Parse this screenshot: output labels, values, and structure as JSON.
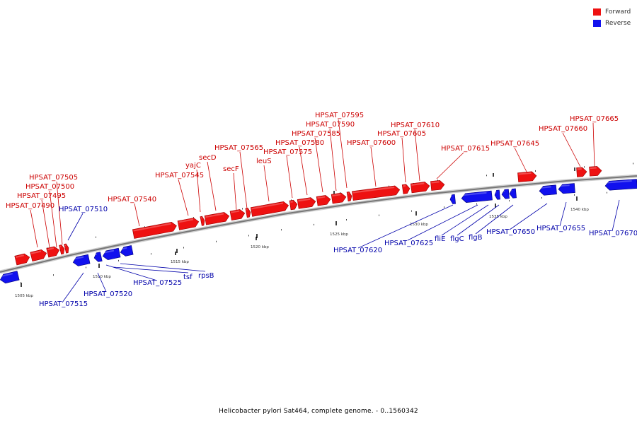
{
  "legend": {
    "forward_label": "Forward",
    "reverse_label": "Reverse",
    "forward_color": "#ee1111",
    "reverse_color": "#1111ee"
  },
  "caption": "Helicobacter pylori Sat464, complete genome. - 0..1560342",
  "colors": {
    "forward": "#ee1111",
    "reverse": "#1111ee",
    "forward_text": "#cc0000",
    "reverse_text": "#0000aa",
    "backbone": "#777777"
  },
  "kbp_ticks": [
    {
      "label": "1505 kbp"
    },
    {
      "label": "1510 kbp"
    },
    {
      "label": "1515 kbp"
    },
    {
      "label": "1520 kbp"
    },
    {
      "label": "1525 kbp"
    },
    {
      "label": "1530 kbp"
    },
    {
      "label": "1535 kbp"
    },
    {
      "label": "1540 kbp"
    }
  ],
  "forward_genes": [
    {
      "label": "HPSAT_07490"
    },
    {
      "label": "HPSAT_07495"
    },
    {
      "label": "HPSAT_07500"
    },
    {
      "label": "HPSAT_07505"
    },
    {
      "label": "HPSAT_07540"
    },
    {
      "label": "HPSAT_07545"
    },
    {
      "label": "yajC"
    },
    {
      "label": "secD"
    },
    {
      "label": "secF"
    },
    {
      "label": "HPSAT_07565"
    },
    {
      "label": "leuS"
    },
    {
      "label": "HPSAT_07575"
    },
    {
      "label": "HPSAT_07580"
    },
    {
      "label": "HPSAT_07585"
    },
    {
      "label": "HPSAT_07590"
    },
    {
      "label": "HPSAT_07595"
    },
    {
      "label": "HPSAT_07600"
    },
    {
      "label": "HPSAT_07605"
    },
    {
      "label": "HPSAT_07610"
    },
    {
      "label": "HPSAT_07615"
    },
    {
      "label": "HPSAT_07645"
    },
    {
      "label": "HPSAT_07660"
    },
    {
      "label": "HPSAT_07665"
    }
  ],
  "reverse_genes": [
    {
      "label": "HPSAT_07510"
    },
    {
      "label": "HPSAT_07515"
    },
    {
      "label": "HPSAT_07520"
    },
    {
      "label": "HPSAT_07525"
    },
    {
      "label": "tsf"
    },
    {
      "label": "rpsB"
    },
    {
      "label": "HPSAT_07620"
    },
    {
      "label": "HPSAT_07625"
    },
    {
      "label": "fliE"
    },
    {
      "label": "flgC"
    },
    {
      "label": "flgB"
    },
    {
      "label": "HPSAT_07650"
    },
    {
      "label": "HPSAT_07655"
    },
    {
      "label": "HPSAT_07670"
    }
  ]
}
